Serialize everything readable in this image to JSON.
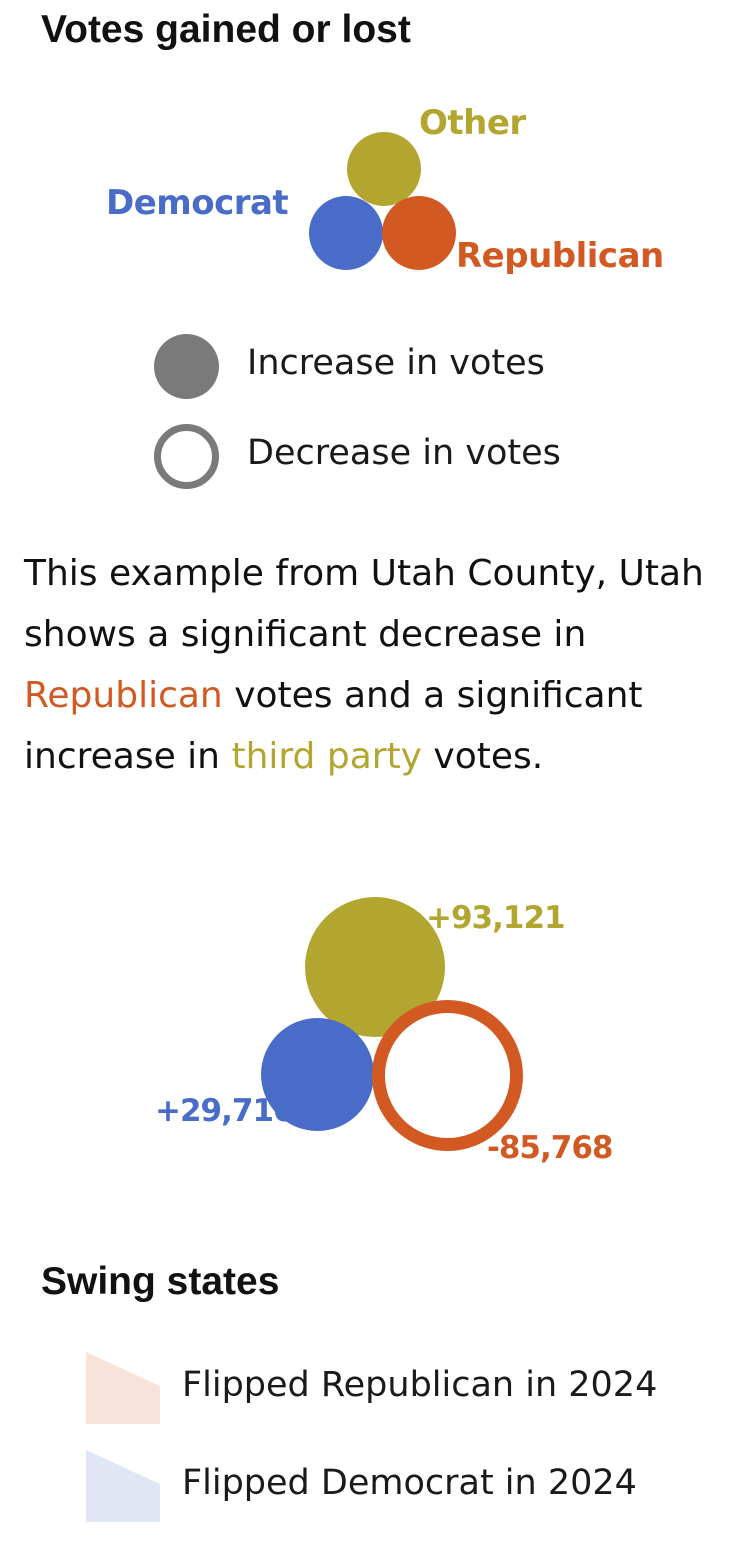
{
  "votes_legend": {
    "title": "Votes gained or lost",
    "parties": {
      "other": {
        "label": "Other",
        "color": "#b2a530"
      },
      "democrat": {
        "label": "Democrat",
        "color": "#4a6cc9"
      },
      "republican": {
        "label": "Republican",
        "color": "#d25a22"
      }
    },
    "fill_legend": {
      "increase": {
        "label": "Increase in votes",
        "color": "#7a7a7a"
      },
      "decrease": {
        "label": "Decrease in votes",
        "color": "#7a7a7a"
      }
    }
  },
  "example": {
    "text_parts": [
      "This example from Utah County, Utah shows a significant decrease in ",
      "Republican",
      " votes and a significant increase in ",
      "third party",
      " votes."
    ],
    "values": {
      "other": "+93,121",
      "democrat": "+29,716",
      "republican": "-85,768"
    }
  },
  "swing_states": {
    "title": "Swing states",
    "items": [
      {
        "label": "Flipped Republican in 2024",
        "color": "#f7e3da"
      },
      {
        "label": "Flipped Democrat in 2024",
        "color": "#e0e6f4"
      }
    ]
  }
}
